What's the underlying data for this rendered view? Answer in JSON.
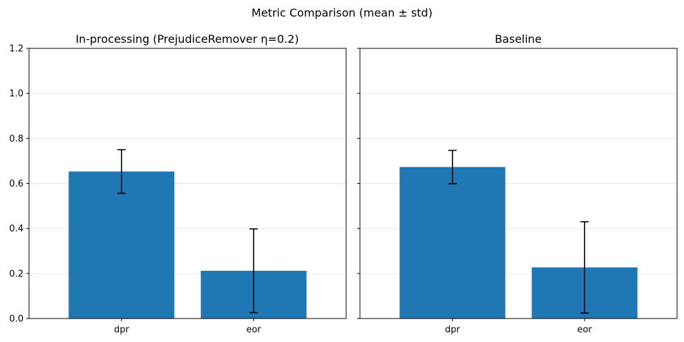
{
  "chart_data": {
    "type": "bar",
    "title": "Metric Comparison (mean ± std)",
    "panels": [
      {
        "title": "In-processing (PrejudiceRemover η=0.2)",
        "categories": [
          "dpr",
          "eor"
        ],
        "values": [
          0.653,
          0.212
        ],
        "errors": [
          0.097,
          0.186
        ]
      },
      {
        "title": "Baseline",
        "categories": [
          "dpr",
          "eor"
        ],
        "values": [
          0.673,
          0.227
        ],
        "errors": [
          0.074,
          0.203
        ]
      }
    ],
    "ylim": [
      0,
      1.2
    ],
    "yticks": [
      "0.0",
      "0.2",
      "0.4",
      "0.6",
      "0.8",
      "1.0",
      "1.2"
    ],
    "sharey": true,
    "grid": "y",
    "bar_color": "#1f77b4",
    "errorbar_color": "#000000"
  }
}
